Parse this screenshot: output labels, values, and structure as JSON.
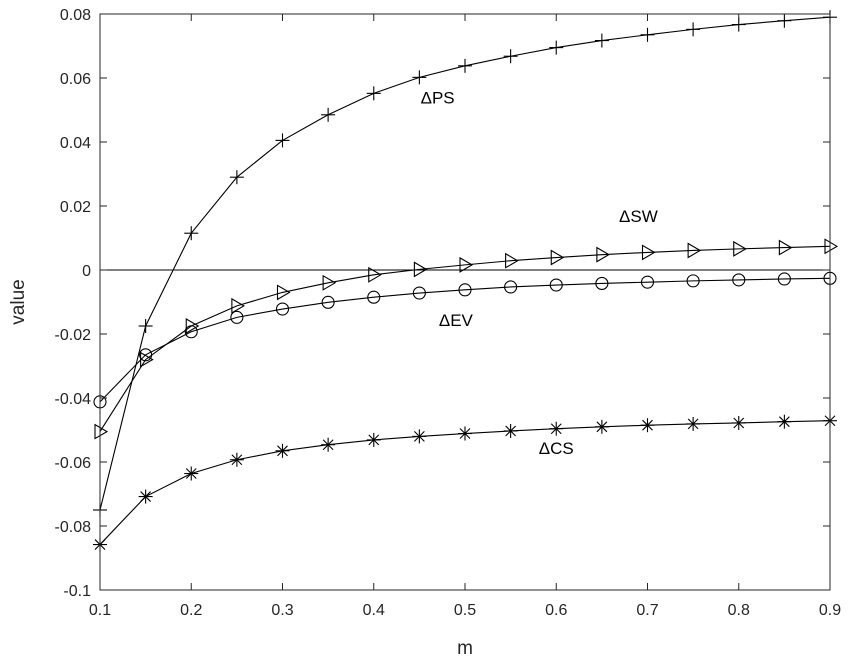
{
  "chart_data": {
    "type": "line",
    "title": "",
    "xlabel": "m",
    "ylabel": "value",
    "xlim": [
      0.1,
      0.9
    ],
    "ylim": [
      -0.1,
      0.08
    ],
    "x_ticks": [
      0.1,
      0.2,
      0.3,
      0.4,
      0.5,
      0.6,
      0.7,
      0.8,
      0.9
    ],
    "x_tick_labels": [
      "0.1",
      "0.2",
      "0.3",
      "0.4",
      "0.5",
      "0.6",
      "0.7",
      "0.8",
      "0.9"
    ],
    "y_ticks": [
      -0.1,
      -0.08,
      -0.06,
      -0.04,
      -0.02,
      0,
      0.02,
      0.04,
      0.06,
      0.08
    ],
    "y_tick_labels": [
      "-0.1",
      "-0.08",
      "-0.06",
      "-0.04",
      "-0.02",
      "0",
      "0.02",
      "0.04",
      "0.06",
      "0.08"
    ],
    "grid": false,
    "reference_line_y": 0,
    "x": [
      0.1,
      0.15,
      0.2,
      0.25,
      0.3,
      0.35,
      0.4,
      0.45,
      0.5,
      0.55,
      0.6,
      0.65,
      0.7,
      0.75,
      0.8,
      0.85,
      0.9
    ],
    "series": [
      {
        "label": "ΔPS",
        "marker": "plus",
        "label_anchor": {
          "x": 0.47,
          "y": 0.052
        },
        "values": [
          -0.075,
          -0.0175,
          0.0115,
          0.029,
          0.0405,
          0.0485,
          0.0552,
          0.0602,
          0.0638,
          0.0668,
          0.0695,
          0.0717,
          0.0735,
          0.0752,
          0.0767,
          0.0779,
          0.079
        ]
      },
      {
        "label": "ΔSW",
        "marker": "triangle-right",
        "label_anchor": {
          "x": 0.69,
          "y": 0.015
        },
        "values": [
          -0.0505,
          -0.028,
          -0.0175,
          -0.0112,
          -0.007,
          -0.004,
          -0.0015,
          0.0002,
          0.0016,
          0.0029,
          0.0039,
          0.0048,
          0.0055,
          0.0061,
          0.0066,
          0.007,
          0.0074
        ]
      },
      {
        "label": "ΔEV",
        "marker": "circle",
        "label_anchor": {
          "x": 0.49,
          "y": -0.0175
        },
        "values": [
          -0.0412,
          -0.0265,
          -0.0193,
          -0.0148,
          -0.0122,
          -0.0101,
          -0.0085,
          -0.0072,
          -0.0062,
          -0.0053,
          -0.0047,
          -0.0042,
          -0.0038,
          -0.0034,
          -0.0031,
          -0.0028,
          -0.0026
        ]
      },
      {
        "label": "ΔCS",
        "marker": "asterisk",
        "label_anchor": {
          "x": 0.6,
          "y": -0.0575
        },
        "values": [
          -0.0858,
          -0.0708,
          -0.0636,
          -0.0593,
          -0.0565,
          -0.0546,
          -0.0531,
          -0.052,
          -0.0511,
          -0.0503,
          -0.0496,
          -0.049,
          -0.0485,
          -0.0481,
          -0.0478,
          -0.0474,
          -0.0471
        ]
      }
    ]
  }
}
